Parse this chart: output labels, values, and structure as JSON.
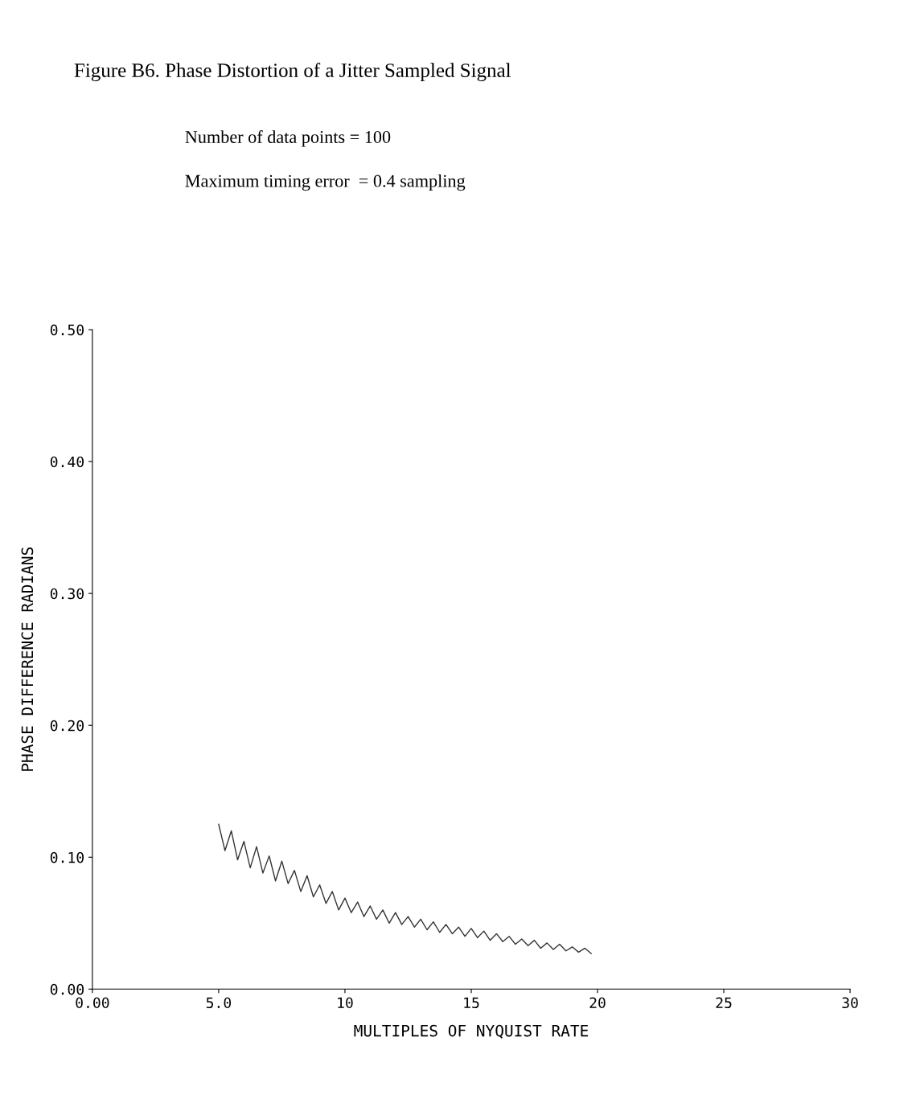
{
  "chart_data": {
    "type": "line",
    "title": "Figure B6. Phase Distortion of a Jitter Sampled Signal",
    "annotations": [
      "Number of data points = 100",
      "Maximum timing error  = 0.4 sampling"
    ],
    "xlabel": "MULTIPLES OF NYQUIST RATE",
    "ylabel": "PHASE DIFFERENCE RADIANS",
    "xlim": [
      0,
      30
    ],
    "ylim": [
      0,
      0.5
    ],
    "xticks": [
      {
        "value": 0,
        "label": "0.00"
      },
      {
        "value": 5,
        "label": "5.0"
      },
      10,
      15,
      20,
      25,
      30
    ],
    "yticks": [
      {
        "value": 0,
        "label": "0.00"
      },
      {
        "value": 0.1,
        "label": "0.10"
      },
      {
        "value": 0.2,
        "label": "0.20"
      },
      {
        "value": 0.3,
        "label": "0.30"
      },
      {
        "value": 0.4,
        "label": "0.40"
      },
      {
        "value": 0.5,
        "label": "0.50"
      }
    ],
    "grid": false,
    "legend": false,
    "marker": "none",
    "line_style": "solid",
    "series": [
      {
        "color": "#333333",
        "x": [
          5.0,
          5.25,
          5.5,
          5.75,
          6.0,
          6.25,
          6.5,
          6.75,
          7.0,
          7.25,
          7.5,
          7.75,
          8.0,
          8.25,
          8.5,
          8.75,
          9.0,
          9.25,
          9.5,
          9.75,
          10.0,
          10.25,
          10.5,
          10.75,
          11.0,
          11.25,
          11.5,
          11.75,
          12.0,
          12.25,
          12.5,
          12.75,
          13.0,
          13.25,
          13.5,
          13.75,
          14.0,
          14.25,
          14.5,
          14.75,
          15.0,
          15.25,
          15.5,
          15.75,
          16.0,
          16.25,
          16.5,
          16.75,
          17.0,
          17.25,
          17.5,
          17.75,
          18.0,
          18.25,
          18.5,
          18.75,
          19.0,
          19.25,
          19.5,
          19.75
        ],
        "values": [
          0.125,
          0.105,
          0.12,
          0.098,
          0.112,
          0.092,
          0.108,
          0.088,
          0.101,
          0.082,
          0.097,
          0.08,
          0.09,
          0.074,
          0.086,
          0.07,
          0.079,
          0.065,
          0.074,
          0.06,
          0.069,
          0.058,
          0.066,
          0.055,
          0.063,
          0.053,
          0.06,
          0.05,
          0.058,
          0.049,
          0.055,
          0.047,
          0.053,
          0.045,
          0.051,
          0.043,
          0.049,
          0.042,
          0.047,
          0.04,
          0.046,
          0.039,
          0.044,
          0.037,
          0.042,
          0.036,
          0.04,
          0.034,
          0.038,
          0.033,
          0.037,
          0.031,
          0.035,
          0.03,
          0.034,
          0.029,
          0.032,
          0.028,
          0.031,
          0.027
        ]
      }
    ]
  }
}
